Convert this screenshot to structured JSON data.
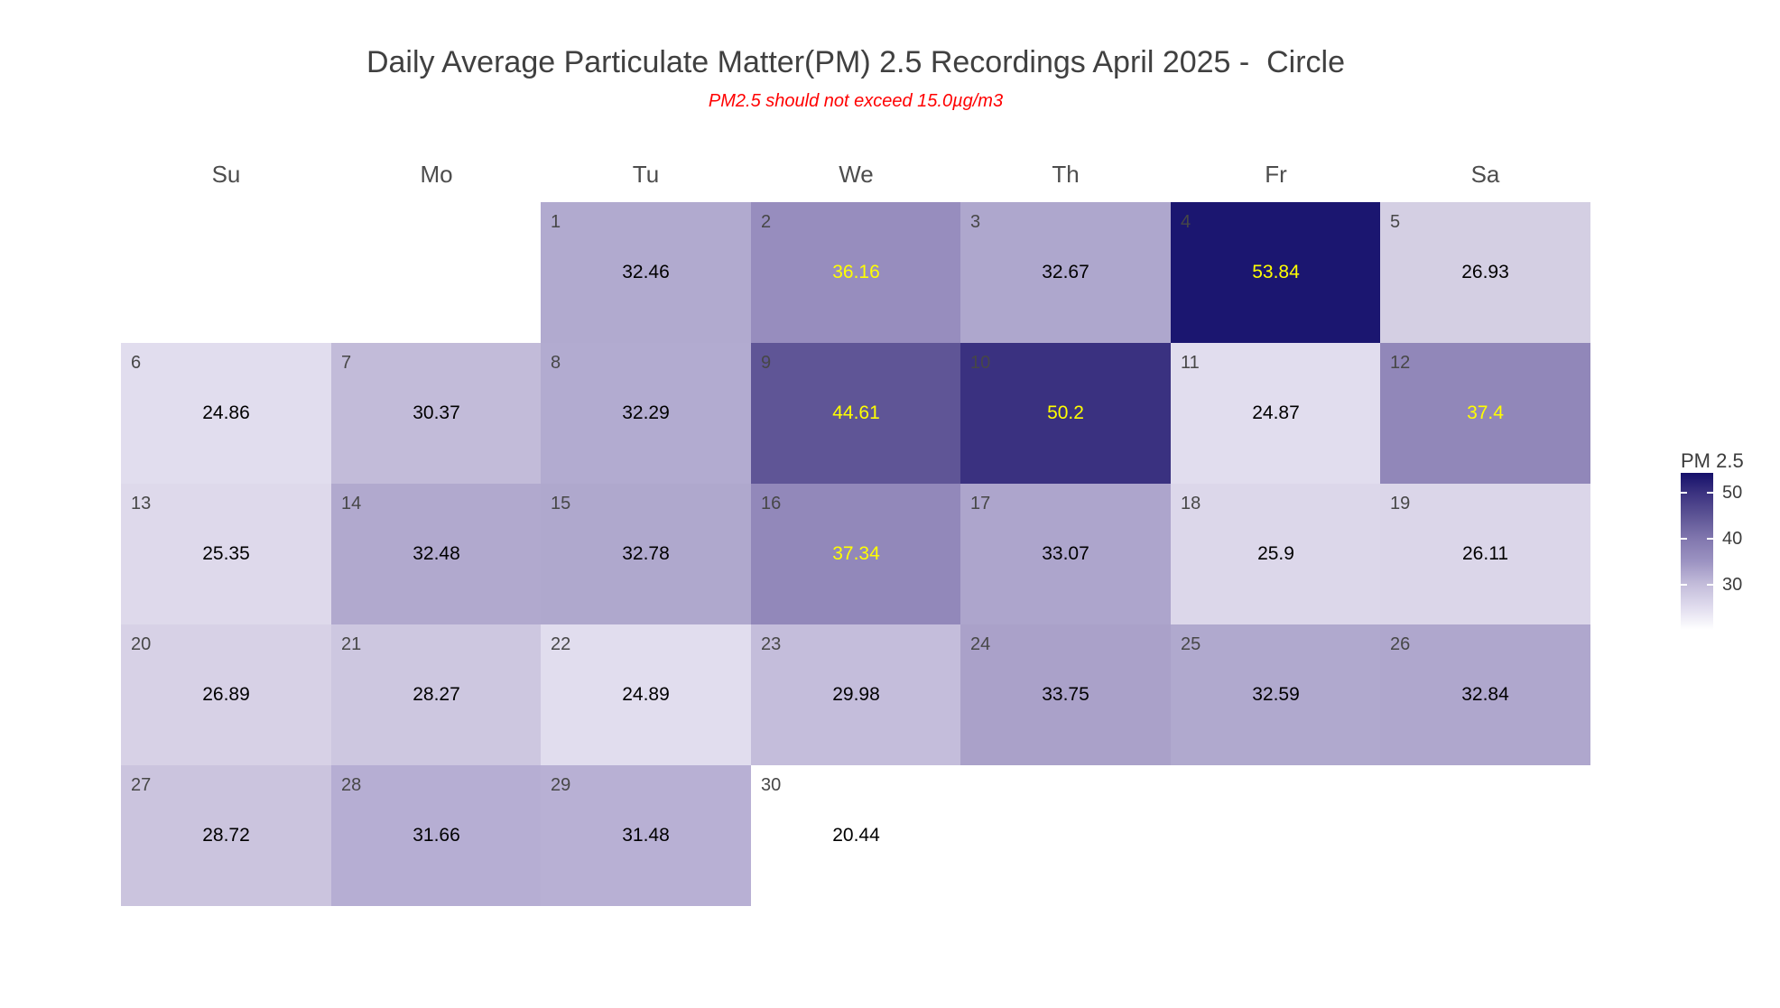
{
  "header": {
    "title": "Daily Average Particulate Matter(PM) 2.5 Recordings April 2025 -  Circle",
    "subtitle": "PM2.5 should not exceed 15.0µg/m3"
  },
  "chart_data": {
    "type": "heatmap",
    "title": "Daily Average Particulate Matter(PM) 2.5 Recordings April 2025 -  Circle",
    "subtitle": "PM2.5 should not exceed 15.0µg/m3",
    "month": "April 2025",
    "weekday_labels": [
      "Su",
      "Mo",
      "Tu",
      "We",
      "Th",
      "Fr",
      "Sa"
    ],
    "first_day_column": 2,
    "value_label_high_threshold": 35,
    "colors": {
      "value_default": "#000000",
      "value_high": "#ffff00",
      "day_number": "#474747",
      "title": "#404040",
      "subtitle": "#ff0000",
      "weekday_header": "#4d4d4d",
      "scale_low": "#ffffff",
      "scale_high": "#1b1670"
    },
    "days": [
      {
        "day": 1,
        "value": 32.46,
        "label": "32.46",
        "color": "#b1aacf",
        "highlight": false
      },
      {
        "day": 2,
        "value": 36.16,
        "label": "36.16",
        "color": "#978dbe",
        "highlight": true
      },
      {
        "day": 3,
        "value": 32.67,
        "label": "32.67",
        "color": "#aea7cd",
        "highlight": false
      },
      {
        "day": 4,
        "value": 53.84,
        "label": "53.84",
        "color": "#1b1670",
        "highlight": true
      },
      {
        "day": 5,
        "value": 26.93,
        "label": "26.93",
        "color": "#d4cfe3",
        "highlight": false
      },
      {
        "day": 6,
        "value": 24.86,
        "label": "24.86",
        "color": "#e1ddee",
        "highlight": false
      },
      {
        "day": 7,
        "value": 30.37,
        "label": "30.37",
        "color": "#c2bbd9",
        "highlight": false
      },
      {
        "day": 8,
        "value": 32.29,
        "label": "32.29",
        "color": "#b2abd0",
        "highlight": false
      },
      {
        "day": 9,
        "value": 44.61,
        "label": "44.61",
        "color": "#5f5596",
        "highlight": true
      },
      {
        "day": 10,
        "value": 50.2,
        "label": "50.2",
        "color": "#3a3180",
        "highlight": true
      },
      {
        "day": 11,
        "value": 24.87,
        "label": "24.87",
        "color": "#e1ddee",
        "highlight": false
      },
      {
        "day": 12,
        "value": 37.4,
        "label": "37.4",
        "color": "#9187b9",
        "highlight": true
      },
      {
        "day": 13,
        "value": 25.35,
        "label": "25.35",
        "color": "#ded9eb",
        "highlight": false
      },
      {
        "day": 14,
        "value": 32.48,
        "label": "32.48",
        "color": "#b1a9ce",
        "highlight": false
      },
      {
        "day": 15,
        "value": 32.78,
        "label": "32.78",
        "color": "#afa8cd",
        "highlight": false
      },
      {
        "day": 16,
        "value": 37.34,
        "label": "37.34",
        "color": "#9288ba",
        "highlight": true
      },
      {
        "day": 17,
        "value": 33.07,
        "label": "33.07",
        "color": "#ada5cc",
        "highlight": false
      },
      {
        "day": 18,
        "value": 25.9,
        "label": "25.9",
        "color": "#dcd7ea",
        "highlight": false
      },
      {
        "day": 19,
        "value": 26.11,
        "label": "26.11",
        "color": "#dbd6e9",
        "highlight": false
      },
      {
        "day": 20,
        "value": 26.89,
        "label": "26.89",
        "color": "#d7d1e6",
        "highlight": false
      },
      {
        "day": 21,
        "value": 28.27,
        "label": "28.27",
        "color": "#cdc7e0",
        "highlight": false
      },
      {
        "day": 22,
        "value": 24.89,
        "label": "24.89",
        "color": "#e1ddee",
        "highlight": false
      },
      {
        "day": 23,
        "value": 29.98,
        "label": "29.98",
        "color": "#c4bddb",
        "highlight": false
      },
      {
        "day": 24,
        "value": 33.75,
        "label": "33.75",
        "color": "#aaa1c9",
        "highlight": false
      },
      {
        "day": 25,
        "value": 32.59,
        "label": "32.59",
        "color": "#b0a9ce",
        "highlight": false
      },
      {
        "day": 26,
        "value": 32.84,
        "label": "32.84",
        "color": "#afa7cd",
        "highlight": false
      },
      {
        "day": 27,
        "value": 28.72,
        "label": "28.72",
        "color": "#cbc4de",
        "highlight": false
      },
      {
        "day": 28,
        "value": 31.66,
        "label": "31.66",
        "color": "#b6aed3",
        "highlight": false
      },
      {
        "day": 29,
        "value": 31.48,
        "label": "31.48",
        "color": "#b8b0d4",
        "highlight": false
      },
      {
        "day": 30,
        "value": 20.44,
        "label": "20.44",
        "color": "#ffffff",
        "highlight": false
      }
    ],
    "legend": {
      "title": "PM 2.5",
      "range_min": 20.1,
      "range_max": 54.4,
      "ticks": [
        {
          "value": 50,
          "label": "50"
        },
        {
          "value": 40,
          "label": "40"
        },
        {
          "value": 30,
          "label": "30"
        }
      ],
      "gradient": [
        {
          "pos": 0,
          "color": "#15106a"
        },
        {
          "pos": 12.8,
          "color": "#3b3280"
        },
        {
          "pos": 27.3,
          "color": "#5d5495"
        },
        {
          "pos": 41.9,
          "color": "#8177ae"
        },
        {
          "pos": 56.4,
          "color": "#9c93c2"
        },
        {
          "pos": 70.9,
          "color": "#c3bcda"
        },
        {
          "pos": 85.5,
          "color": "#e0dcee"
        },
        {
          "pos": 100,
          "color": "#ffffff"
        }
      ]
    }
  }
}
